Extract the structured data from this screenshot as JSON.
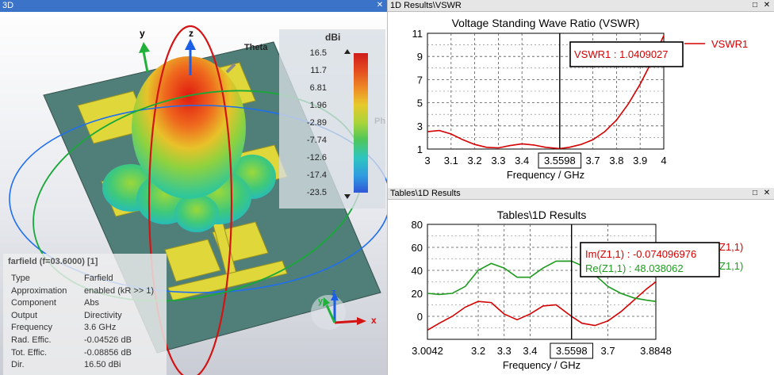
{
  "panes": {
    "left_title": "3D",
    "vswr_title": "1D Results\\VSWR",
    "z_title": "Tables\\1D Results"
  },
  "view3d": {
    "axis_y": "y",
    "axis_z": "z",
    "axis_theta": "Theta",
    "axis_phi": "Ph",
    "triad_x": "x",
    "triad_y": "y",
    "triad_z": "z",
    "colorbar": {
      "unit": "dBi",
      "labels": [
        "16.5",
        "11.7",
        "6.81",
        "1.96",
        "-2.89",
        "-7.74",
        "-12.6",
        "-17.4",
        "-23.5"
      ]
    },
    "info": {
      "title": "farfield (f=03.6000) [1]",
      "rows": [
        {
          "k": "Type",
          "v": "Farfield"
        },
        {
          "k": "Approximation",
          "v": "enabled (kR >> 1)"
        },
        {
          "k": "Component",
          "v": "Abs"
        },
        {
          "k": "Output",
          "v": "Directivity"
        },
        {
          "k": "Frequency",
          "v": "3.6 GHz"
        },
        {
          "k": "Rad. Effic.",
          "v": "-0.04526 dB"
        },
        {
          "k": "Tot. Effic.",
          "v": "-0.08856 dB"
        },
        {
          "k": "Dir.",
          "v": "16.50 dBi"
        }
      ]
    }
  },
  "chart_data": [
    {
      "type": "line",
      "title": "Voltage Standing Wave Ratio (VSWR)",
      "xlabel": "Frequency / GHz",
      "ylabel": "",
      "xlim": [
        3.0,
        4.0
      ],
      "ylim": [
        1,
        11
      ],
      "xticks": [
        "3",
        "3.1",
        "3.2",
        "3.3",
        "3.4",
        "3.5598",
        "3.7",
        "3.8",
        "3.9",
        "4"
      ],
      "yticks": [
        "1",
        "3",
        "5",
        "7",
        "9",
        "11"
      ],
      "grid": true,
      "marker_x": 3.5598,
      "marker_label": "3.5598",
      "marker_readout": "VSWR1 : 1.0409027",
      "series": [
        {
          "name": "VSWR1",
          "color": "#d40000",
          "x": [
            3.0,
            3.05,
            3.1,
            3.15,
            3.2,
            3.25,
            3.3,
            3.35,
            3.4,
            3.45,
            3.5,
            3.5598,
            3.6,
            3.65,
            3.7,
            3.75,
            3.8,
            3.85,
            3.9,
            3.95,
            4.0
          ],
          "y": [
            2.5,
            2.6,
            2.3,
            1.8,
            1.4,
            1.15,
            1.1,
            1.3,
            1.45,
            1.35,
            1.15,
            1.04,
            1.15,
            1.4,
            1.8,
            2.5,
            3.5,
            4.9,
            6.6,
            8.6,
            10.8
          ]
        }
      ]
    },
    {
      "type": "line",
      "title": "Tables\\1D Results",
      "xlabel": "Frequency / GHz",
      "ylabel": "",
      "xlim": [
        3.0042,
        3.8848
      ],
      "ylim": [
        -20,
        80
      ],
      "xticks": [
        "3.0042",
        "3.2",
        "3.3",
        "3.4",
        "3.5598",
        "3.7",
        "3.8848"
      ],
      "yticks": [
        "0",
        "20",
        "40",
        "60",
        "80"
      ],
      "grid": true,
      "marker_x": 3.5598,
      "marker_label": "3.5598",
      "readouts": [
        "Im(Z1,1) : -0.074096976",
        "Re(Z1,1) : 48.038062"
      ],
      "legend_fragments": [
        "Z1,1)",
        "Z1,1)"
      ],
      "series": [
        {
          "name": "Im(Z1,1)",
          "color": "#d40000",
          "x": [
            3.0042,
            3.05,
            3.1,
            3.15,
            3.2,
            3.25,
            3.3,
            3.35,
            3.4,
            3.45,
            3.5,
            3.5598,
            3.6,
            3.65,
            3.7,
            3.75,
            3.8,
            3.85,
            3.8848
          ],
          "y": [
            -12,
            -6,
            0,
            8,
            13,
            12,
            2,
            -3,
            2,
            9,
            10,
            -0.07,
            -6,
            -8,
            -4,
            4,
            14,
            24,
            30
          ]
        },
        {
          "name": "Re(Z1,1)",
          "color": "#1e9b1e",
          "x": [
            3.0042,
            3.05,
            3.1,
            3.15,
            3.2,
            3.25,
            3.3,
            3.35,
            3.4,
            3.45,
            3.5,
            3.5598,
            3.6,
            3.65,
            3.7,
            3.75,
            3.8,
            3.85,
            3.8848
          ],
          "y": [
            20,
            19,
            20,
            26,
            40,
            46,
            42,
            34,
            34,
            42,
            48,
            48.04,
            44,
            36,
            26,
            20,
            16,
            14,
            13
          ]
        }
      ]
    }
  ]
}
